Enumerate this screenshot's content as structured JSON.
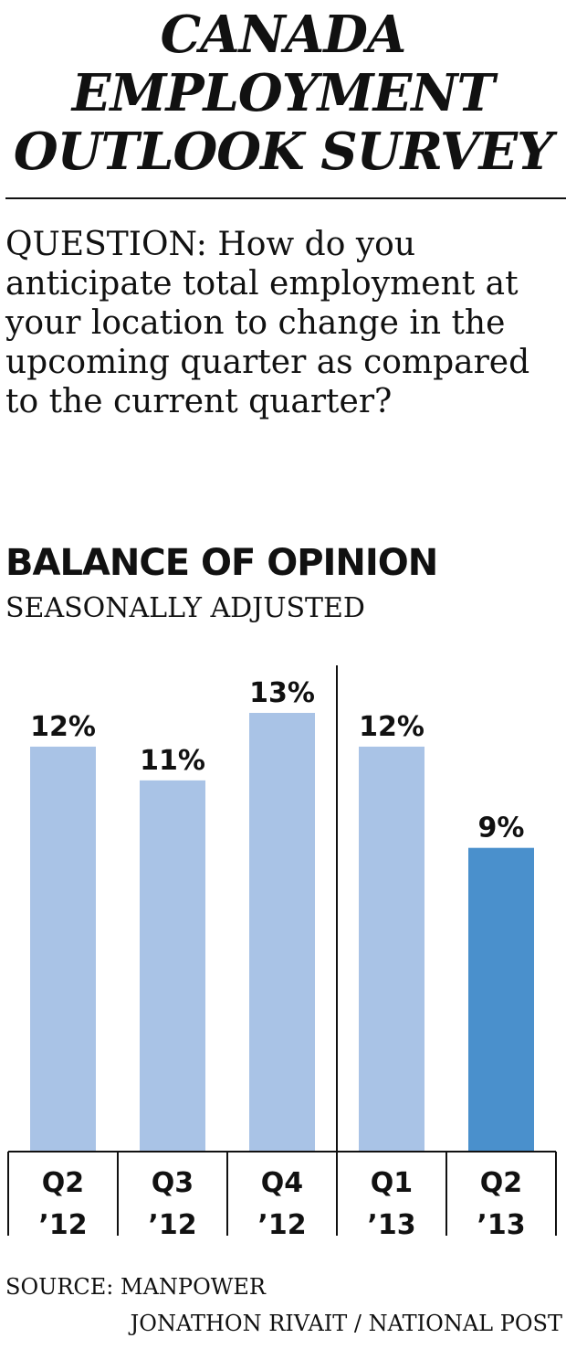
{
  "title_lines": [
    "CANADA",
    "EMPLOYMENT",
    "OUTLOOK SURVEY"
  ],
  "question": "QUESTION: How do you anticipate total employment at your location to change in the upcoming quarter as compared to the current quarter?",
  "chart_heading": "BALANCE OF OPINION",
  "chart_subheading": "SEASONALLY ADJUSTED",
  "source": "SOURCE: MANPOWER",
  "credit": "JONATHON RIVAIT / NATIONAL POST",
  "colors": {
    "bar_default": "#a9c3e6",
    "bar_highlight": "#4a90cc",
    "text": "#111111"
  },
  "chart_data": {
    "type": "bar",
    "categories": [
      [
        "Q2",
        "’12"
      ],
      [
        "Q3",
        "’12"
      ],
      [
        "Q4",
        "’12"
      ],
      [
        "Q1",
        "’13"
      ],
      [
        "Q2",
        "’13"
      ]
    ],
    "values": [
      12,
      11,
      13,
      12,
      9
    ],
    "value_labels": [
      "12%",
      "11%",
      "13%",
      "12%",
      "9%"
    ],
    "unit": "%",
    "highlight_index": 4,
    "year_divider_after_index": 2,
    "ylim": [
      0,
      13
    ],
    "grid": false,
    "legend": "none"
  }
}
